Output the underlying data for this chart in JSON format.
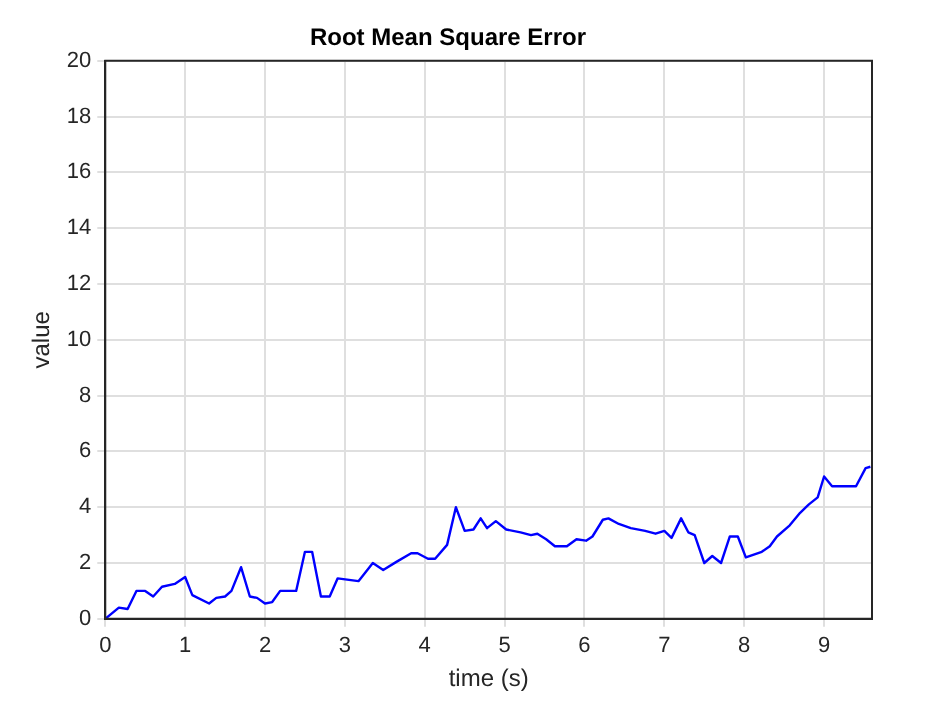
{
  "chart_data": {
    "type": "line",
    "title": "Root Mean Square Error",
    "xlabel": "time (s)",
    "ylabel": "value",
    "xlim": [
      0,
      9.6
    ],
    "xticks": [
      0,
      1,
      2,
      3,
      4,
      5,
      6,
      7,
      8,
      9
    ],
    "ylim": [
      0,
      20
    ],
    "yticks": [
      0,
      2,
      4,
      6,
      8,
      10,
      12,
      14,
      16,
      18,
      20
    ],
    "grid": true,
    "marker": "none",
    "line_style": "solid",
    "legend": false,
    "series": [
      {
        "color": "#0000ff",
        "x": [
          0,
          0.17,
          0.28,
          0.39,
          0.5,
          0.6,
          0.71,
          0.87,
          1.0,
          1.09,
          1.3,
          1.39,
          1.5,
          1.58,
          1.7,
          1.81,
          1.9,
          2.0,
          2.09,
          2.19,
          2.39,
          2.5,
          2.59,
          2.7,
          2.81,
          2.91,
          3.17,
          3.35,
          3.48,
          3.65,
          3.83,
          3.91,
          4.04,
          4.13,
          4.28,
          4.39,
          4.5,
          4.61,
          4.7,
          4.78,
          4.89,
          5.02,
          5.2,
          5.33,
          5.41,
          5.52,
          5.63,
          5.78,
          5.9,
          6.02,
          6.1,
          6.23,
          6.3,
          6.43,
          6.58,
          6.76,
          6.89,
          7.0,
          7.09,
          7.21,
          7.3,
          7.38,
          7.5,
          7.6,
          7.71,
          7.82,
          7.92,
          8.02,
          8.22,
          8.32,
          8.41,
          8.57,
          8.7,
          8.81,
          8.92,
          9.0,
          9.1,
          9.4,
          9.52,
          9.58
        ],
        "values": [
          0,
          0.4,
          0.35,
          1.0,
          1.0,
          0.8,
          1.15,
          1.25,
          1.5,
          0.85,
          0.55,
          0.75,
          0.8,
          1.0,
          1.85,
          0.8,
          0.75,
          0.55,
          0.6,
          1.0,
          1.0,
          2.4,
          2.4,
          0.8,
          0.8,
          1.45,
          1.35,
          2.0,
          1.75,
          2.05,
          2.35,
          2.35,
          2.15,
          2.15,
          2.65,
          4.0,
          3.15,
          3.2,
          3.6,
          3.25,
          3.5,
          3.2,
          3.1,
          3.0,
          3.05,
          2.85,
          2.6,
          2.6,
          2.85,
          2.8,
          2.95,
          3.55,
          3.6,
          3.4,
          3.25,
          3.15,
          3.05,
          3.15,
          2.9,
          3.6,
          3.1,
          3.0,
          2.0,
          2.25,
          2.0,
          2.95,
          2.95,
          2.2,
          2.4,
          2.6,
          2.95,
          3.35,
          3.8,
          4.1,
          4.35,
          5.1,
          4.75,
          4.75,
          5.4,
          5.45
        ]
      }
    ]
  }
}
